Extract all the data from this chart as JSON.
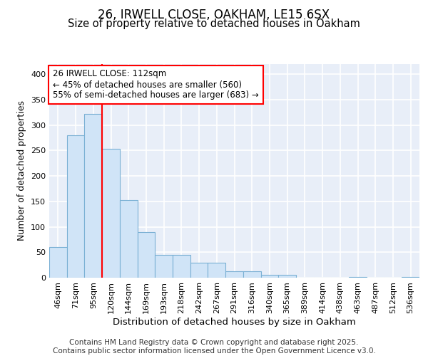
{
  "title1": "26, IRWELL CLOSE, OAKHAM, LE15 6SX",
  "title2": "Size of property relative to detached houses in Oakham",
  "xlabel": "Distribution of detached houses by size in Oakham",
  "ylabel": "Number of detached properties",
  "categories": [
    "46sqm",
    "71sqm",
    "95sqm",
    "120sqm",
    "144sqm",
    "169sqm",
    "193sqm",
    "218sqm",
    "242sqm",
    "267sqm",
    "291sqm",
    "316sqm",
    "340sqm",
    "365sqm",
    "389sqm",
    "414sqm",
    "438sqm",
    "463sqm",
    "487sqm",
    "512sqm",
    "536sqm"
  ],
  "values": [
    60,
    280,
    322,
    253,
    153,
    90,
    45,
    45,
    30,
    30,
    12,
    12,
    5,
    5,
    0,
    0,
    0,
    2,
    0,
    0,
    2
  ],
  "bar_color": "#d0e4f7",
  "bar_edge_color": "#7ab0d4",
  "red_line_index": 3,
  "annotation_line1": "26 IRWELL CLOSE: 112sqm",
  "annotation_line2": "← 45% of detached houses are smaller (560)",
  "annotation_line3": "55% of semi-detached houses are larger (683) →",
  "annotation_box_color": "white",
  "annotation_box_edge_color": "red",
  "footer_text": "Contains HM Land Registry data © Crown copyright and database right 2025.\nContains public sector information licensed under the Open Government Licence v3.0.",
  "ylim": [
    0,
    420
  ],
  "yticks": [
    0,
    50,
    100,
    150,
    200,
    250,
    300,
    350,
    400
  ],
  "background_color": "#e8eef8",
  "grid_color": "white",
  "title_fontsize": 12,
  "subtitle_fontsize": 10.5,
  "tick_fontsize": 8,
  "ylabel_fontsize": 9,
  "xlabel_fontsize": 9.5,
  "footer_fontsize": 7.5,
  "annotation_fontsize": 8.5
}
